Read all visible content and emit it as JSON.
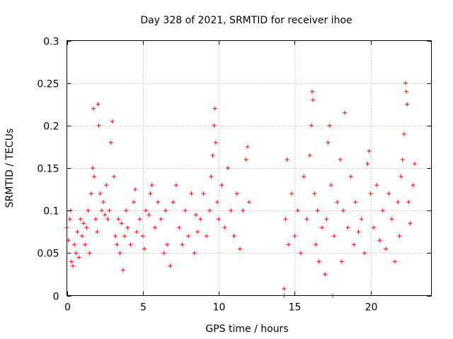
{
  "chart_data": {
    "type": "scatter",
    "title": "Day 328 of 2021, SRMTID for receiver ihoe",
    "xlabel": "GPS time / hours",
    "ylabel": "SRMTID / TECUs",
    "xlim": [
      0,
      24
    ],
    "ylim": [
      0,
      0.3
    ],
    "x_ticks": [
      0,
      5,
      10,
      15,
      20
    ],
    "x_tick_labels": [
      "0",
      "5",
      "10",
      "15",
      "20"
    ],
    "y_ticks": [
      0,
      0.05,
      0.1,
      0.15,
      0.2,
      0.25,
      0.3
    ],
    "y_tick_labels": [
      "0",
      "0.05",
      "0.1",
      "0.15",
      "0.2",
      "0.25",
      "0.3"
    ],
    "grid": true,
    "marker": "+",
    "point_color": "#ff0000",
    "series": [
      {
        "name": "SRMTID",
        "points": [
          [
            0.0,
            0.08
          ],
          [
            0.1,
            0.065
          ],
          [
            0.2,
            0.09
          ],
          [
            0.25,
            0.1
          ],
          [
            0.3,
            0.04
          ],
          [
            0.4,
            0.035
          ],
          [
            0.5,
            0.06
          ],
          [
            0.6,
            0.05
          ],
          [
            0.7,
            0.075
          ],
          [
            0.8,
            0.045
          ],
          [
            0.9,
            0.09
          ],
          [
            1.0,
            0.07
          ],
          [
            1.1,
            0.085
          ],
          [
            1.2,
            0.06
          ],
          [
            1.3,
            0.08
          ],
          [
            1.4,
            0.1
          ],
          [
            1.5,
            0.05
          ],
          [
            1.6,
            0.12
          ],
          [
            1.7,
            0.15
          ],
          [
            1.75,
            0.22
          ],
          [
            1.8,
            0.14
          ],
          [
            1.9,
            0.09
          ],
          [
            2.0,
            0.075
          ],
          [
            2.05,
            0.225
          ],
          [
            2.1,
            0.2
          ],
          [
            2.2,
            0.12
          ],
          [
            2.3,
            0.1
          ],
          [
            2.4,
            0.11
          ],
          [
            2.5,
            0.095
          ],
          [
            2.6,
            0.13
          ],
          [
            2.7,
            0.09
          ],
          [
            2.8,
            0.1
          ],
          [
            2.9,
            0.18
          ],
          [
            3.0,
            0.205
          ],
          [
            3.1,
            0.14
          ],
          [
            3.2,
            0.07
          ],
          [
            3.3,
            0.06
          ],
          [
            3.4,
            0.09
          ],
          [
            3.5,
            0.05
          ],
          [
            3.6,
            0.085
          ],
          [
            3.7,
            0.03
          ],
          [
            3.8,
            0.07
          ],
          [
            3.9,
            0.1
          ],
          [
            4.0,
            0.08
          ],
          [
            4.2,
            0.06
          ],
          [
            4.4,
            0.11
          ],
          [
            4.5,
            0.125
          ],
          [
            4.6,
            0.075
          ],
          [
            4.8,
            0.09
          ],
          [
            5.0,
            0.07
          ],
          [
            5.1,
            0.055
          ],
          [
            5.2,
            0.1
          ],
          [
            5.4,
            0.095
          ],
          [
            5.5,
            0.12
          ],
          [
            5.6,
            0.13
          ],
          [
            5.8,
            0.08
          ],
          [
            6.0,
            0.11
          ],
          [
            6.2,
            0.09
          ],
          [
            6.4,
            0.05
          ],
          [
            6.5,
            0.1
          ],
          [
            6.6,
            0.06
          ],
          [
            6.8,
            0.035
          ],
          [
            7.0,
            0.11
          ],
          [
            7.2,
            0.13
          ],
          [
            7.4,
            0.08
          ],
          [
            7.6,
            0.06
          ],
          [
            7.8,
            0.1
          ],
          [
            8.0,
            0.07
          ],
          [
            8.2,
            0.12
          ],
          [
            8.4,
            0.05
          ],
          [
            8.5,
            0.095
          ],
          [
            8.6,
            0.075
          ],
          [
            8.8,
            0.09
          ],
          [
            9.0,
            0.12
          ],
          [
            9.2,
            0.07
          ],
          [
            9.4,
            0.1
          ],
          [
            9.5,
            0.14
          ],
          [
            9.6,
            0.165
          ],
          [
            9.7,
            0.2
          ],
          [
            9.75,
            0.22
          ],
          [
            9.8,
            0.18
          ],
          [
            9.9,
            0.11
          ],
          [
            10.0,
            0.09
          ],
          [
            10.2,
            0.13
          ],
          [
            10.4,
            0.08
          ],
          [
            10.6,
            0.15
          ],
          [
            10.8,
            0.1
          ],
          [
            11.0,
            0.07
          ],
          [
            11.2,
            0.12
          ],
          [
            11.4,
            0.055
          ],
          [
            11.6,
            0.1
          ],
          [
            11.8,
            0.16
          ],
          [
            11.9,
            0.175
          ],
          [
            12.0,
            0.11
          ],
          [
            14.3,
            0.008
          ],
          [
            14.3,
            0.0
          ],
          [
            14.4,
            0.09
          ],
          [
            14.5,
            0.16
          ],
          [
            14.6,
            0.06
          ],
          [
            14.8,
            0.12
          ],
          [
            15.0,
            0.07
          ],
          [
            15.2,
            0.1
          ],
          [
            15.4,
            0.05
          ],
          [
            15.6,
            0.14
          ],
          [
            15.8,
            0.09
          ],
          [
            16.0,
            0.165
          ],
          [
            16.1,
            0.2
          ],
          [
            16.15,
            0.24
          ],
          [
            16.2,
            0.23
          ],
          [
            16.3,
            0.12
          ],
          [
            16.4,
            0.06
          ],
          [
            16.5,
            0.1
          ],
          [
            16.6,
            0.04
          ],
          [
            16.8,
            0.08
          ],
          [
            17.0,
            0.025
          ],
          [
            17.1,
            0.09
          ],
          [
            17.2,
            0.18
          ],
          [
            17.3,
            0.2
          ],
          [
            17.4,
            0.13
          ],
          [
            17.5,
            0.0
          ],
          [
            17.6,
            0.07
          ],
          [
            17.8,
            0.11
          ],
          [
            18.0,
            0.16
          ],
          [
            18.1,
            0.04
          ],
          [
            18.2,
            0.1
          ],
          [
            18.3,
            0.215
          ],
          [
            18.5,
            0.08
          ],
          [
            18.7,
            0.14
          ],
          [
            18.9,
            0.06
          ],
          [
            19.0,
            0.11
          ],
          [
            19.2,
            0.075
          ],
          [
            19.4,
            0.09
          ],
          [
            19.6,
            0.05
          ],
          [
            19.8,
            0.155
          ],
          [
            19.9,
            0.17
          ],
          [
            20.0,
            0.12
          ],
          [
            20.2,
            0.08
          ],
          [
            20.4,
            0.13
          ],
          [
            20.6,
            0.065
          ],
          [
            20.8,
            0.1
          ],
          [
            21.0,
            0.055
          ],
          [
            21.2,
            0.12
          ],
          [
            21.4,
            0.09
          ],
          [
            21.6,
            0.04
          ],
          [
            21.8,
            0.11
          ],
          [
            21.9,
            0.07
          ],
          [
            22.0,
            0.14
          ],
          [
            22.1,
            0.16
          ],
          [
            22.2,
            0.19
          ],
          [
            22.3,
            0.25
          ],
          [
            22.35,
            0.24
          ],
          [
            22.4,
            0.225
          ],
          [
            22.5,
            0.11
          ],
          [
            22.6,
            0.085
          ],
          [
            22.8,
            0.13
          ],
          [
            22.9,
            0.155
          ]
        ]
      }
    ]
  }
}
